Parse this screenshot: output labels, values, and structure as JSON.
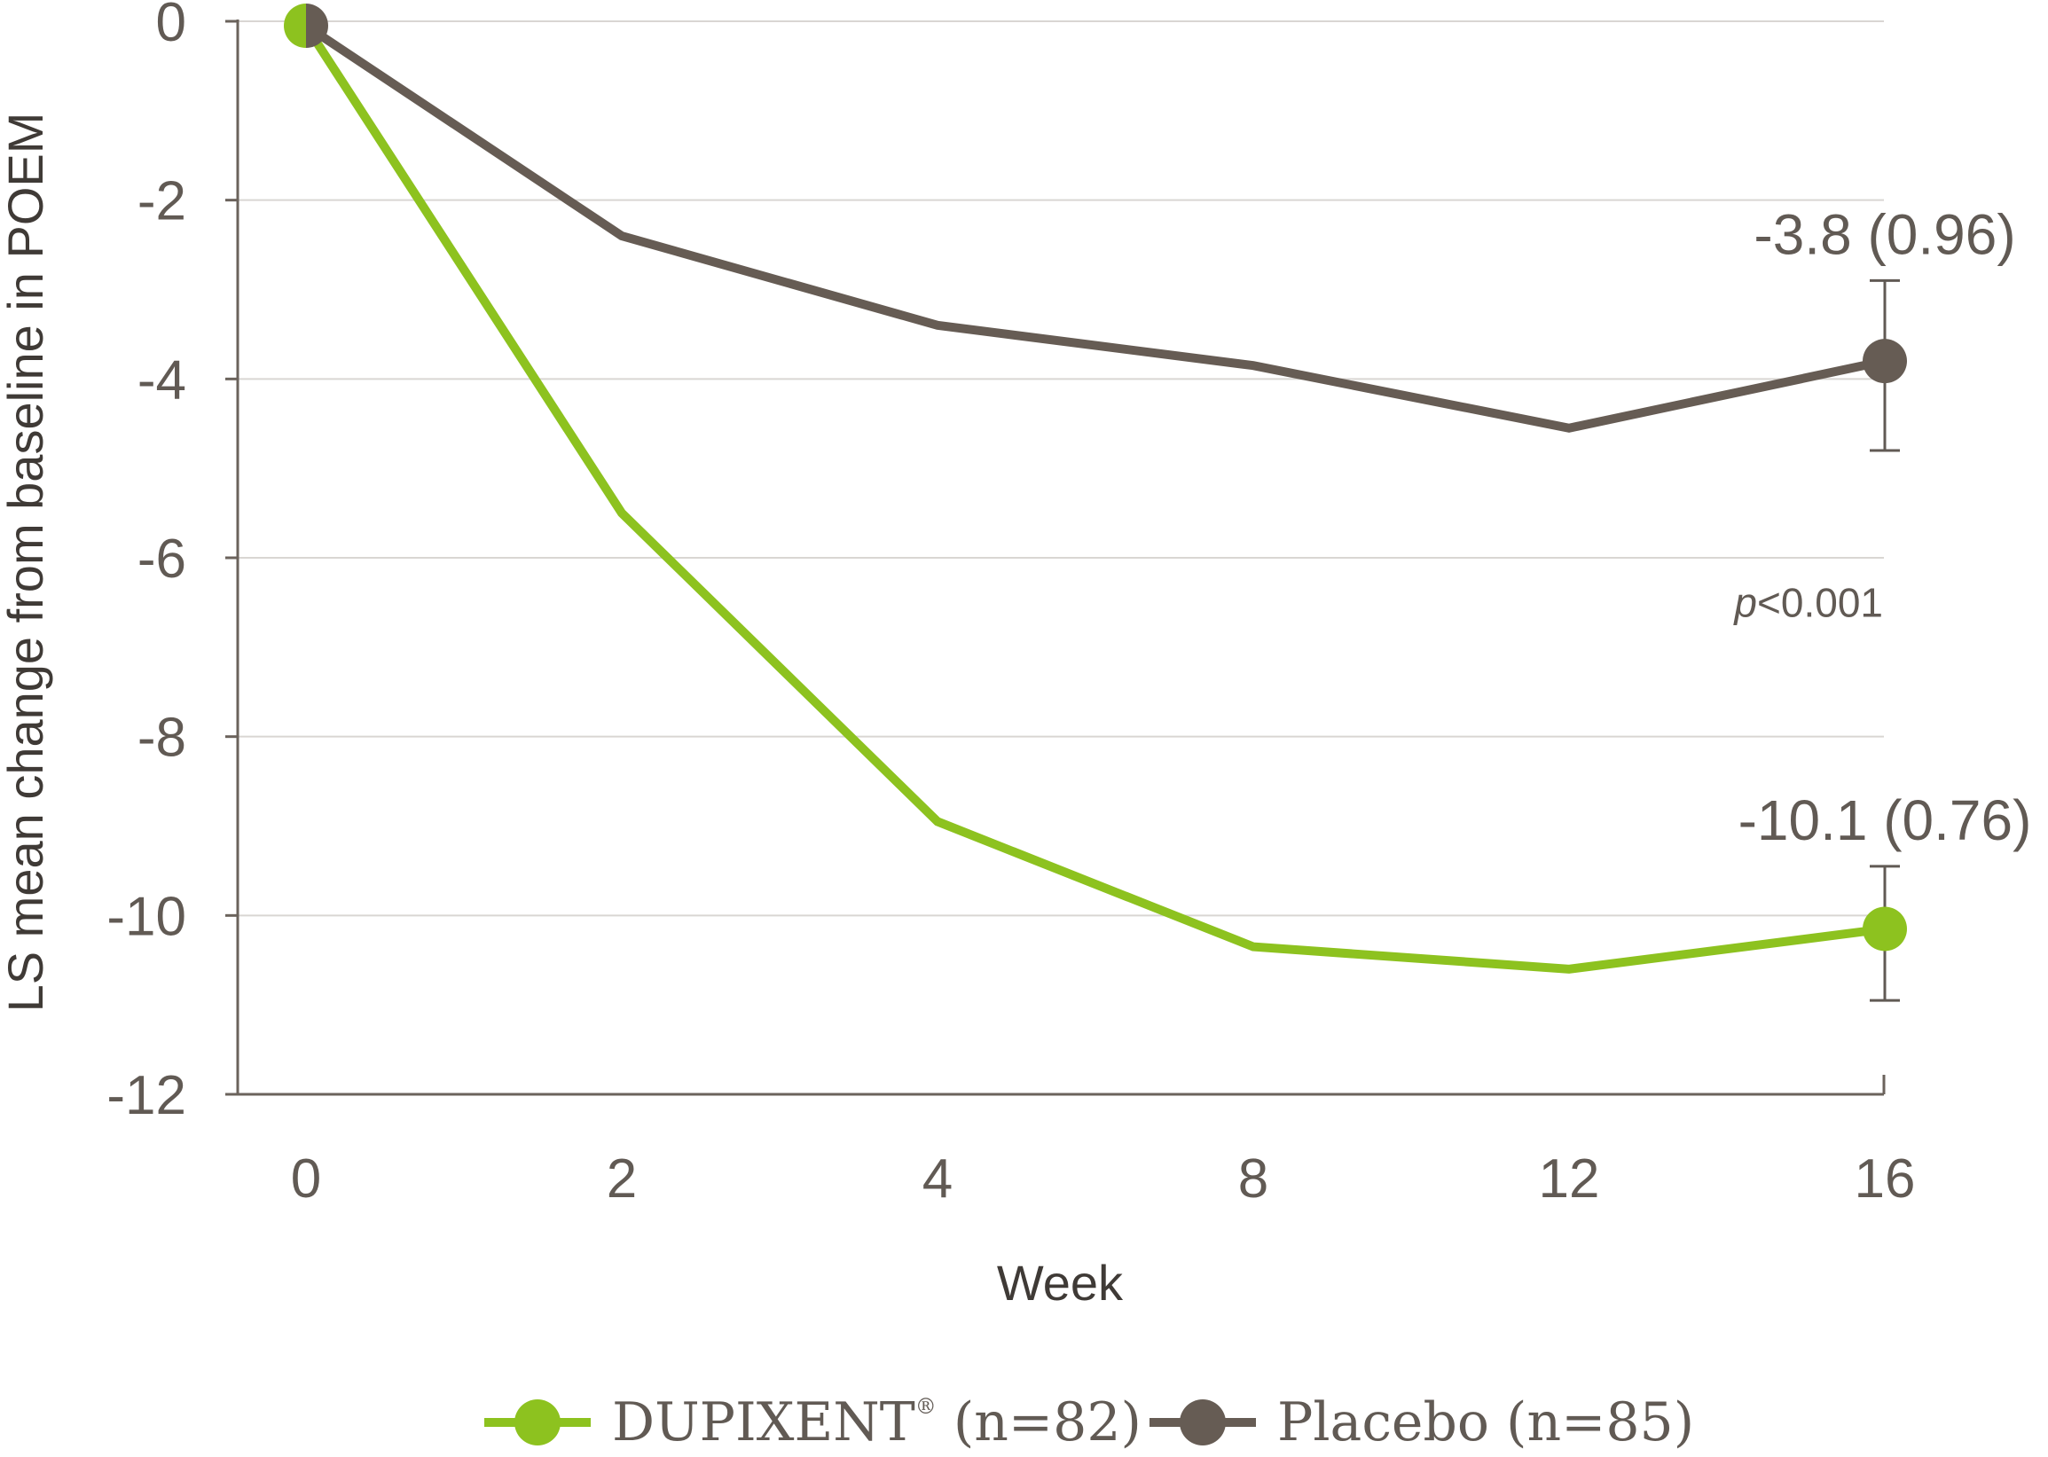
{
  "chart_data": {
    "type": "line",
    "title": "",
    "xlabel": "Week",
    "ylabel": "LS mean change from baseline in POEM",
    "x_categories": [
      "0",
      "2",
      "4",
      "8",
      "12",
      "16"
    ],
    "y_ticks": [
      0,
      -2,
      -4,
      -6,
      -8,
      -10,
      -12
    ],
    "y_tick_labels": [
      "0",
      "-2",
      "-4",
      "-6",
      "-8",
      "-10",
      "-12"
    ],
    "ylim": [
      -12,
      0
    ],
    "grid": true,
    "legend_position": "bottom",
    "series": [
      {
        "name": "DUPIXENT",
        "name_mark": "®",
        "name_suffix": " (n=82)",
        "color": "#8dc21f",
        "values": [
          -0.05,
          -5.5,
          -8.95,
          -10.35,
          -10.6,
          -10.15
        ],
        "endpoint_label": "-10.1 (0.76)",
        "error_bar": {
          "low": -10.95,
          "high": -9.45
        }
      },
      {
        "name": "Placebo (n=85)",
        "color": "#665c54",
        "values": [
          -0.05,
          -2.4,
          -3.4,
          -3.85,
          -4.55,
          -3.8
        ],
        "endpoint_label": "-3.8 (0.96)",
        "error_bar": {
          "low": -4.8,
          "high": -2.9
        }
      }
    ],
    "annotations": {
      "p_italic": "p",
      "p_rest": "<0.001"
    }
  }
}
